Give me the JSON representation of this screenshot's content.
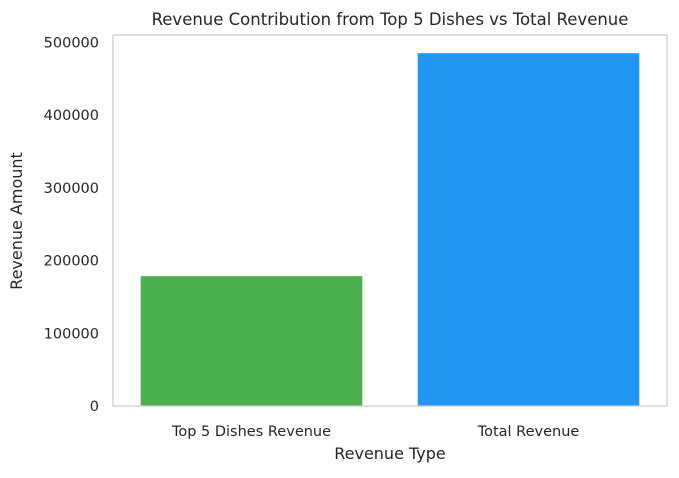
{
  "chart_data": {
    "type": "bar",
    "title": "Revenue Contribution from Top 5 Dishes vs Total Revenue",
    "xlabel": "Revenue Type",
    "ylabel": "Revenue Amount",
    "categories": [
      "Top 5 Dishes Revenue",
      "Total Revenue"
    ],
    "values": [
      178500,
      485000
    ],
    "colors": [
      "#4caf50",
      "#2196f3"
    ],
    "ylim": [
      0,
      510000
    ],
    "yticks": [
      0,
      100000,
      200000,
      300000,
      400000,
      500000
    ],
    "grid": false,
    "legend": "none"
  }
}
